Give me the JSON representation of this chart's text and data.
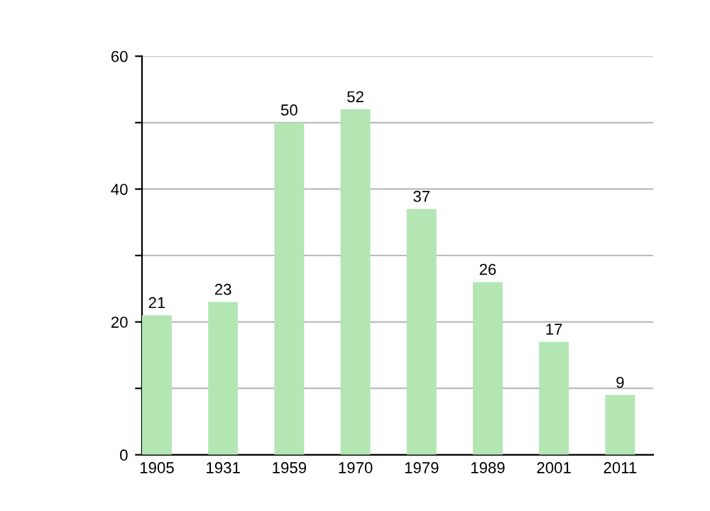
{
  "chart_data": {
    "type": "bar",
    "categories": [
      "1905",
      "1931",
      "1959",
      "1970",
      "1979",
      "1989",
      "2001",
      "2011"
    ],
    "values": [
      21,
      23,
      50,
      52,
      37,
      26,
      17,
      9
    ],
    "color": "#b3e6b3",
    "ylim": [
      0,
      60
    ],
    "yticks": [
      0,
      {
        "value": 10,
        "label": null
      },
      20,
      {
        "value": 30,
        "label": null
      },
      40,
      {
        "value": 50,
        "label": null
      },
      60
    ],
    "grid": "y",
    "data_labels": true
  }
}
